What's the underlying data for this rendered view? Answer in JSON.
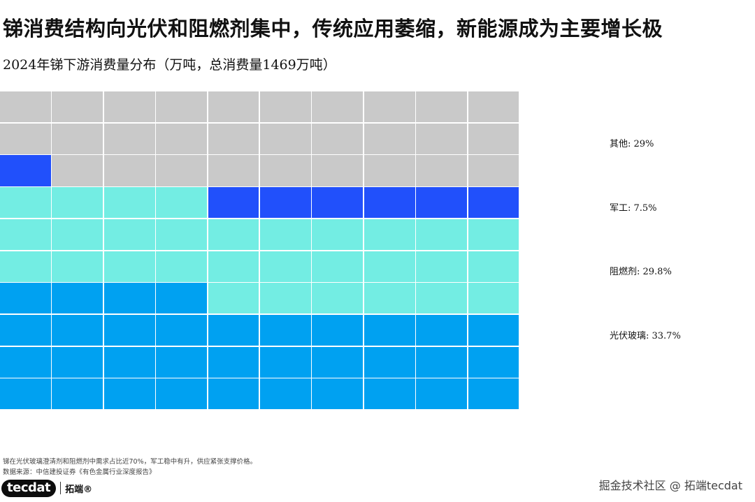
{
  "title": "锑消费结构向光伏和阻燃剂集中，传统应用萎缩，新能源成为主要增长极",
  "subtitle": "2024年锑下游消费量分布（万吨，总消费量1469万吨）",
  "chart_data": {
    "type": "waffle",
    "grid": {
      "rows": 10,
      "cols": 10,
      "fill_order": "bottom-left-rowwise"
    },
    "unit": "%",
    "series": [
      {
        "name": "光伏玻璃",
        "value": 33.7,
        "cells": 34,
        "color": "#00a1f1",
        "label": "光伏玻璃: 33.7%"
      },
      {
        "name": "阻燃剂",
        "value": 29.8,
        "cells": 30,
        "color": "#73ede3",
        "label": "阻燃剂: 29.8%"
      },
      {
        "name": "军工",
        "value": 7.5,
        "cells": 7,
        "color": "#2150fb",
        "label": "军工: 7.5%"
      },
      {
        "name": "其他",
        "value": 29,
        "cells": 29,
        "color": "#c9c9c9",
        "label": "其他: 29%"
      }
    ]
  },
  "footnote": {
    "line1": "锑在光伏玻璃澄清剂和阻燃剂中需求占比近70%，军工稳中有升，供应紧张支撑价格。",
    "line2": "数据来源：中信建投证券《有色金属行业深度报告》"
  },
  "logo": {
    "brand": "tecdat",
    "cn": "拓端®"
  },
  "watermark": "掘金技术社区 @ 拓端tecdat"
}
